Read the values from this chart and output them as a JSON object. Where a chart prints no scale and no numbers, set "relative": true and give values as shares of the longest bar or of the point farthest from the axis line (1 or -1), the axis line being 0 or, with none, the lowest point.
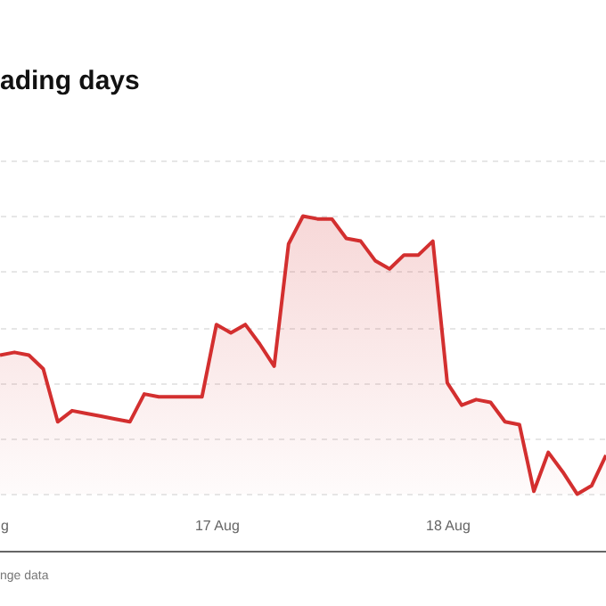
{
  "chart_data": {
    "type": "area",
    "title": "ading days",
    "relative": true,
    "grid": "y",
    "categories": [
      "g",
      null,
      null,
      null,
      null,
      null,
      null,
      null,
      null,
      null,
      null,
      null,
      null,
      null,
      null,
      "17 Aug",
      null,
      null,
      null,
      null,
      null,
      null,
      null,
      null,
      null,
      null,
      null,
      null,
      null,
      null,
      null,
      "18 Aug",
      null,
      null,
      null,
      null,
      null,
      null,
      null,
      null,
      null,
      null,
      null
    ],
    "series": [
      {
        "color": "#d32f2f",
        "values": [
          0.5,
          0.51,
          0.5,
          0.45,
          0.26,
          0.3,
          0.29,
          0.28,
          0.27,
          0.26,
          0.36,
          0.35,
          0.35,
          0.35,
          0.35,
          0.61,
          0.58,
          0.61,
          0.54,
          0.46,
          0.9,
          1,
          0.99,
          0.99,
          0.92,
          0.91,
          0.84,
          0.81,
          0.86,
          0.86,
          0.91,
          0.4,
          0.32,
          0.34,
          0.33,
          0.26,
          0.25,
          0.01,
          0.15,
          0.08,
          0,
          0.03,
          0.14
        ]
      }
    ],
    "annotations": [
      "nge data"
    ]
  }
}
